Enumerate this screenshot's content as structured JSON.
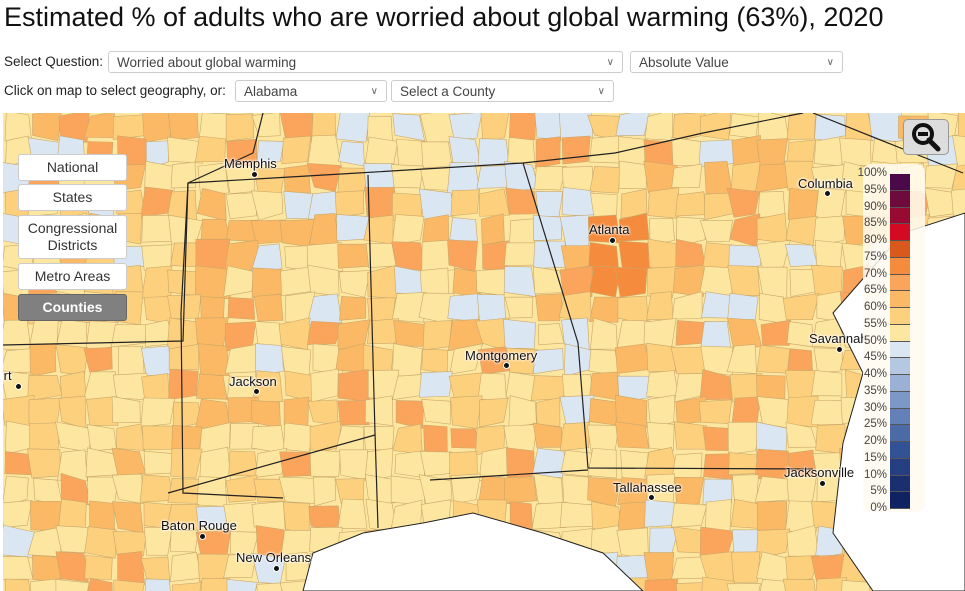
{
  "title": "Estimated % of adults who are worried about global warming (63%), 2020",
  "controls": {
    "question_label": "Select Question:",
    "question_value": "Worried about global warming",
    "measure_value": "Absolute Value",
    "geo_label": "Click on map to select geography, or:",
    "state_value": "Alabama",
    "county_placeholder": "Select a County"
  },
  "geography_buttons": [
    {
      "label": "National",
      "active": false
    },
    {
      "label": "States",
      "active": false
    },
    {
      "label": "Congressional Districts",
      "active": false
    },
    {
      "label": "Metro Areas",
      "active": false
    },
    {
      "label": "Counties",
      "active": true
    }
  ],
  "cities": [
    "Memphis",
    "Atlanta",
    "Columbia",
    "Savannah",
    "Montgomery",
    "Jackson",
    "Shreveport",
    "Baton Rouge",
    "New Orleans",
    "Tallahassee",
    "Jacksonville"
  ],
  "legend": {
    "labels": [
      "100%",
      "95%",
      "90%",
      "85%",
      "80%",
      "75%",
      "70%",
      "65%",
      "60%",
      "55%",
      "50%",
      "45%",
      "40%",
      "35%",
      "30%",
      "25%",
      "20%",
      "15%",
      "10%",
      "5%",
      "0%"
    ],
    "colors": [
      "#4a0a4a",
      "#6e0a3c",
      "#990a33",
      "#d40a22",
      "#d9581c",
      "#f58b3c",
      "#fba55c",
      "#fbb865",
      "#fdd07e",
      "#fde6a0",
      "#dbe6f3",
      "#b4c8e1",
      "#9ab0d4",
      "#7d98c6",
      "#6381b8",
      "#4b6aa6",
      "#335295",
      "#253f82",
      "#1a2f70",
      "#0f2262"
    ],
    "zoom_icon": "zoom-out-icon"
  }
}
